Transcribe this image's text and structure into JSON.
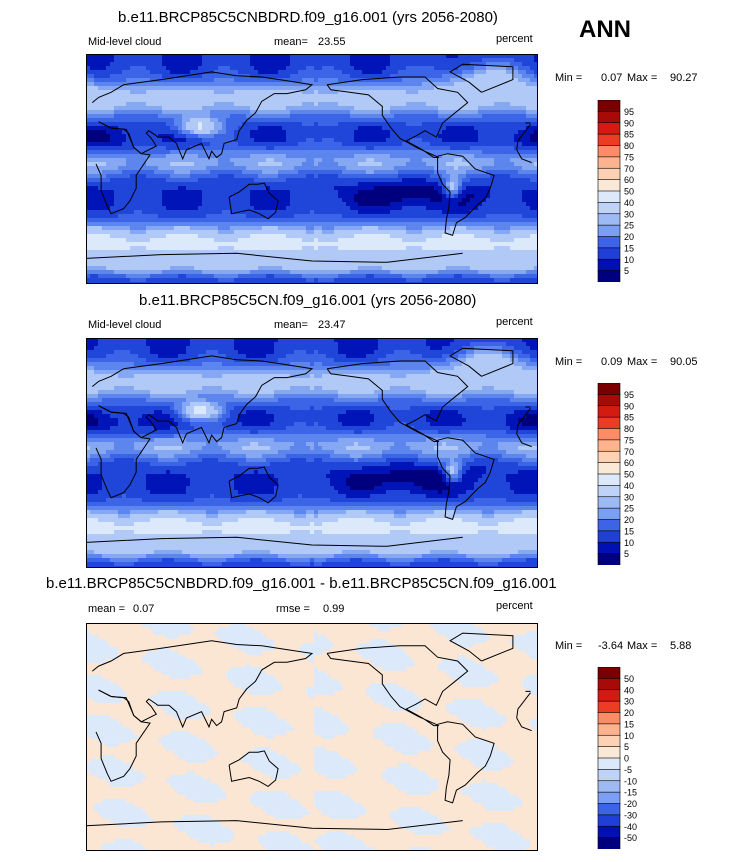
{
  "season": "ANN",
  "colors": {
    "abs_scale": [
      "#00007f",
      "#0010b5",
      "#1f3fd6",
      "#3d63e6",
      "#5b82ee",
      "#7b9ff2",
      "#9dbaf5",
      "#bfd3f8",
      "#dce9fb",
      "#fbe9d8",
      "#fcd1b4",
      "#fcb38e",
      "#fb8c66",
      "#f7643f",
      "#ec3d24",
      "#d41b12",
      "#a80a08",
      "#7a0000"
    ],
    "diff_scale": [
      "#00007f",
      "#0010b5",
      "#1f3fd6",
      "#3d63e6",
      "#5b82ee",
      "#7b9ff2",
      "#9dbaf5",
      "#bfd3f8",
      "#dce9fb",
      "#fbe9d8",
      "#fcd1b4",
      "#fcb38e",
      "#fb8c66",
      "#f7643f",
      "#ec3d24",
      "#d41b12",
      "#a80a08",
      "#7a0000"
    ]
  },
  "chart_data": [
    {
      "type": "heatmap",
      "title": "b.e11.BRCP85C5CNBDRD.f09_g16.001 (yrs 2056-2080)",
      "variable": "Mid-level cloud",
      "stat_label": "mean=",
      "stat_value": "23.55",
      "units": "percent",
      "min_label": "Min =",
      "min_value": "0.07",
      "max_label": "Max =",
      "max_value": "90.27",
      "colorbar_levels": [
        "95",
        "90",
        "85",
        "80",
        "75",
        "70",
        "60",
        "50",
        "40",
        "30",
        "25",
        "20",
        "15",
        "10",
        "5"
      ]
    },
    {
      "type": "heatmap",
      "title": "b.e11.BRCP85C5CN.f09_g16.001 (yrs 2056-2080)",
      "variable": "Mid-level cloud",
      "stat_label": "mean=",
      "stat_value": "23.47",
      "units": "percent",
      "min_label": "Min =",
      "min_value": "0.09",
      "max_label": "Max =",
      "max_value": "90.05",
      "colorbar_levels": [
        "95",
        "90",
        "85",
        "80",
        "75",
        "70",
        "60",
        "50",
        "40",
        "30",
        "25",
        "20",
        "15",
        "10",
        "5"
      ]
    },
    {
      "type": "heatmap",
      "title": "b.e11.BRCP85C5CNBDRD.f09_g16.001 - b.e11.BRCP85C5CN.f09_g16.001",
      "mean_label": "mean =",
      "mean_value": "0.07",
      "rmse_label": "rmse =",
      "rmse_value": "0.99",
      "units": "percent",
      "min_label": "Min =",
      "min_value": "-3.64",
      "max_label": "Max =",
      "max_value": "5.88",
      "colorbar_levels": [
        "50",
        "40",
        "30",
        "20",
        "15",
        "10",
        "5",
        "0",
        "-5",
        "-10",
        "-15",
        "-20",
        "-30",
        "-40",
        "-50"
      ]
    }
  ]
}
